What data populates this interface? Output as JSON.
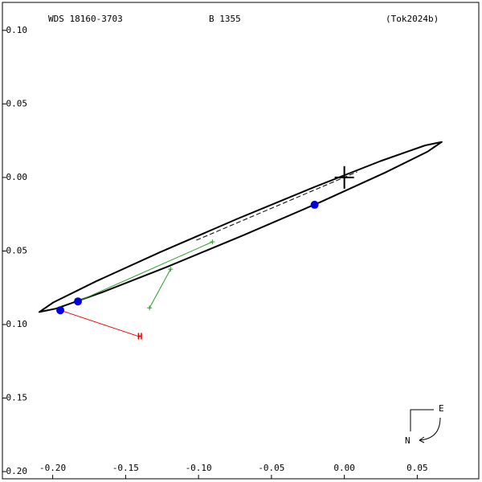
{
  "chart_data": {
    "type": "orbit",
    "title": "WDS 18160-3703",
    "subtitle": "B  1355",
    "reference": "(Tok2024b)",
    "xlim": [
      -0.2345,
      0.0922
    ],
    "ylim": [
      -0.2049,
      0.119
    ],
    "xticks": [
      {
        "value": -0.2,
        "label": "-0.20"
      },
      {
        "value": -0.15,
        "label": "-0.15"
      },
      {
        "value": -0.1,
        "label": "-0.10"
      },
      {
        "value": -0.05,
        "label": "-0.05"
      },
      {
        "value": 0,
        "label": "0.00"
      },
      {
        "value": 0.05,
        "label": "0.05"
      }
    ],
    "yticks": [
      {
        "value": 0.1,
        "label": "0.10"
      },
      {
        "value": 0.05,
        "label": "0.05"
      },
      {
        "value": 0,
        "label": "0.00"
      },
      {
        "value": -0.05,
        "label": "-0.05"
      },
      {
        "value": -0.1,
        "label": "-0.10"
      },
      {
        "value": -0.15,
        "label": "-0.15"
      },
      {
        "value": -0.2,
        "label": "-0.20"
      }
    ],
    "orbit": {
      "color": "#000000",
      "x": [
        0.0668,
        0.0554,
        0.0248,
        -0.0205,
        -0.0735,
        -0.1261,
        -0.1704,
        -0.1996,
        -0.2092,
        -0.1978,
        -0.1672,
        -0.1219,
        -0.0689,
        -0.0163,
        0.028,
        0.0572
      ],
      "y": [
        0.0241,
        0.0218,
        0.0111,
        -0.0065,
        -0.0282,
        -0.0507,
        -0.0707,
        -0.085,
        -0.0915,
        -0.0892,
        -0.0785,
        -0.0609,
        -0.0392,
        -0.0167,
        0.0033,
        0.0176
      ]
    },
    "node_line": {
      "color": "#000000",
      "x": [
        -0.1015,
        0.0088
      ],
      "y": [
        -0.0427,
        0.0038
      ]
    },
    "measures": {
      "color": "#0000dd",
      "x": [
        -0.1948,
        -0.1827,
        -0.0204
      ],
      "y": [
        -0.0903,
        -0.0843,
        -0.0186
      ]
    },
    "h_measure": {
      "color": "#ee0000",
      "label": "H",
      "x": [
        -0.1948,
        -0.1402
      ],
      "y": [
        -0.0903,
        -0.1084
      ]
    },
    "green_segments": {
      "color": "#2a9a2a",
      "lines": [
        {
          "x": [
            -0.1827,
            -0.0905
          ],
          "y": [
            -0.0843,
            -0.0438
          ]
        },
        {
          "x": [
            -0.1192,
            -0.1336
          ],
          "y": [
            -0.0624,
            -0.0887
          ]
        }
      ]
    },
    "compass": {
      "east": "E",
      "north": "N"
    }
  }
}
